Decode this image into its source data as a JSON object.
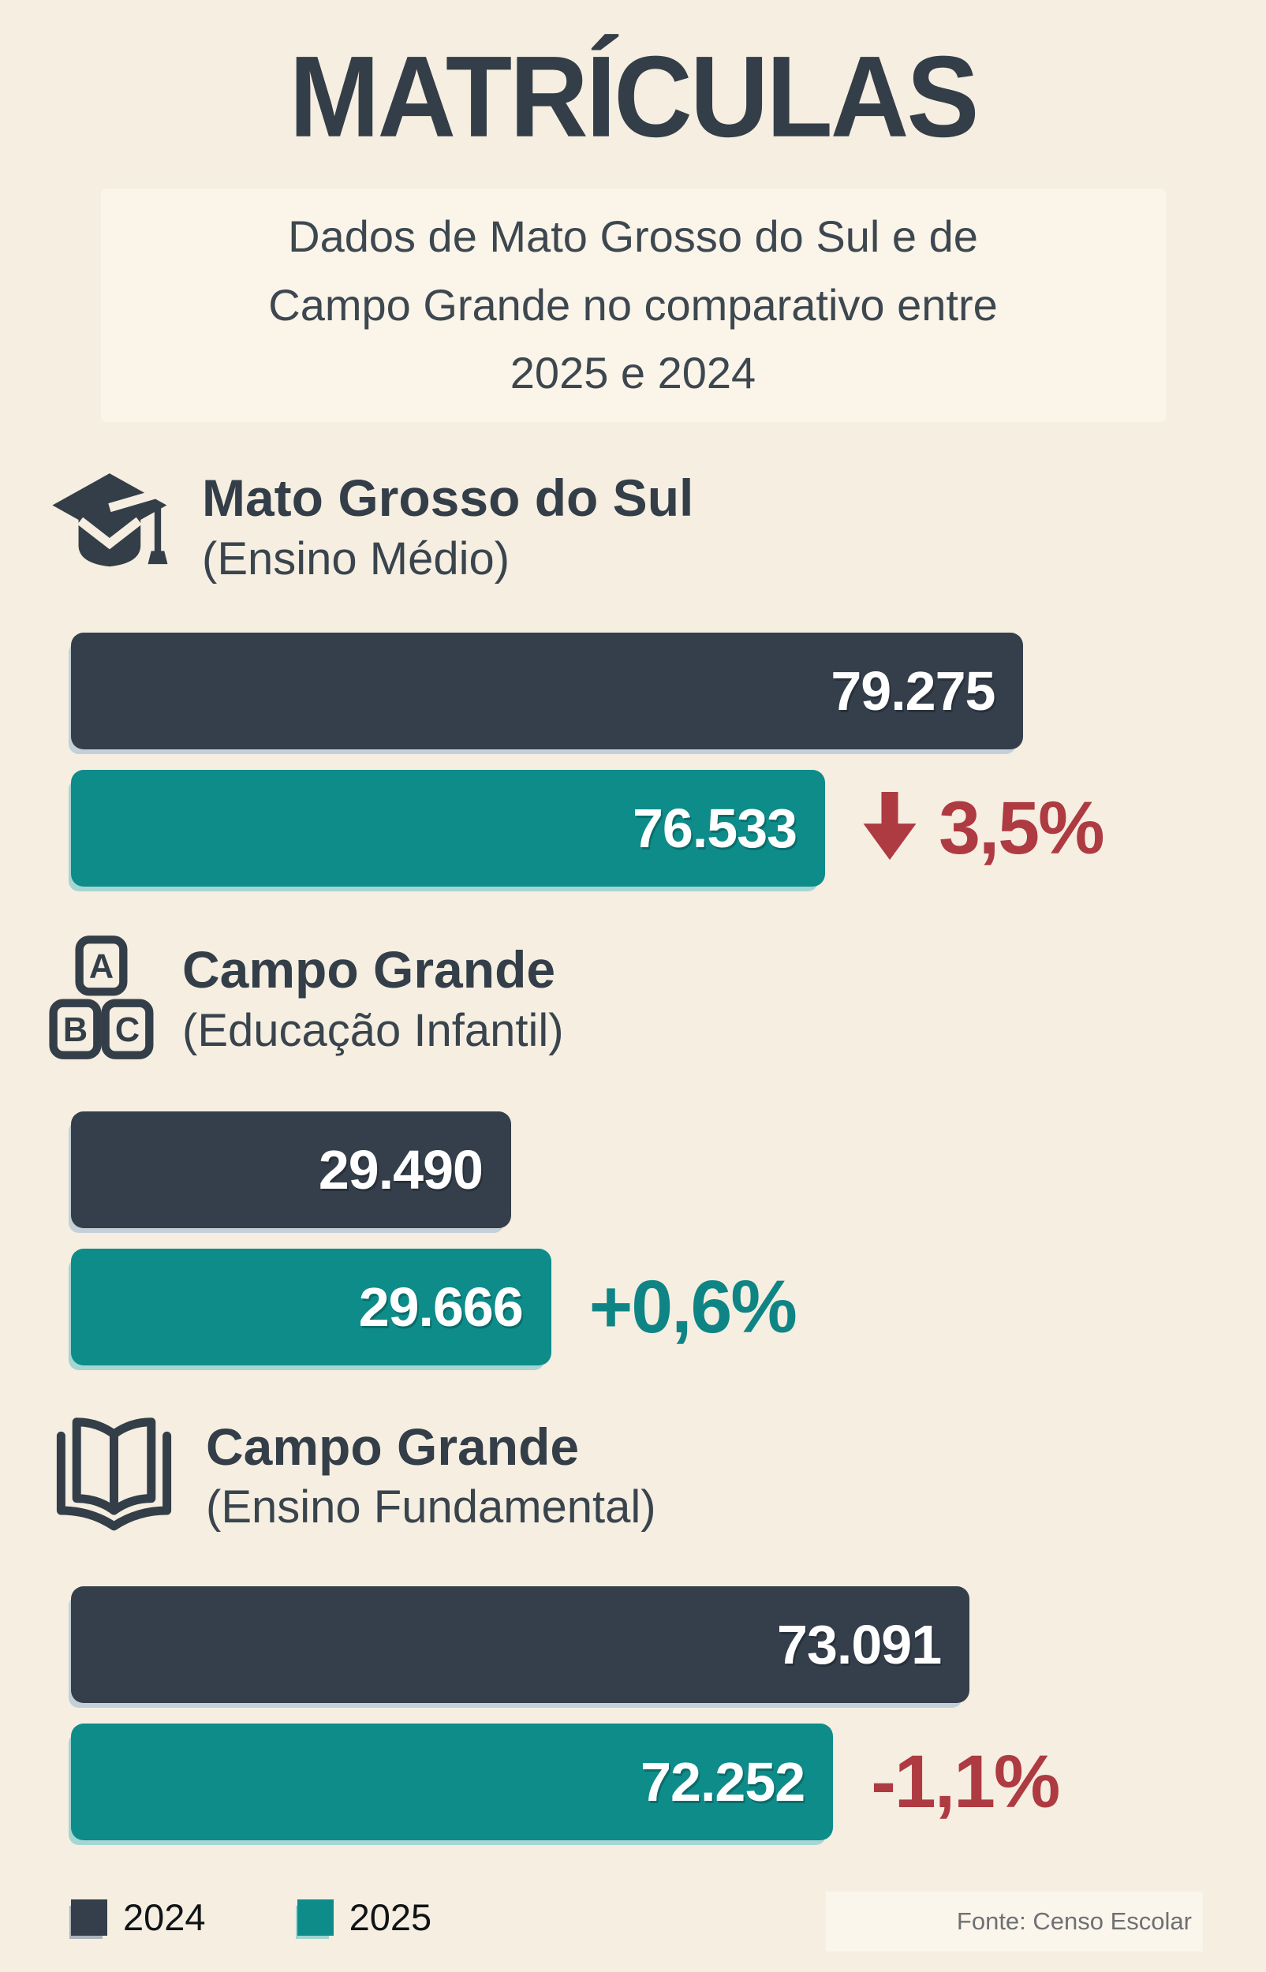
{
  "header": {
    "title": "MATRÍCULAS",
    "subtitle": "Dados de Mato Grosso do Sul e de\nCampo Grande no comparativo entre\n2025 e 2024"
  },
  "chart_data": {
    "type": "bar",
    "orientation": "horizontal",
    "title": "MATRÍCULAS",
    "legend_position": "bottom",
    "series_labels": [
      "2024",
      "2025"
    ],
    "colors": {
      "year_2024": "#343F4B",
      "year_2025": "#0D8C8A",
      "decline": "#AE3A42",
      "growth": "#0E8584",
      "background": "#F5EEE1"
    },
    "sections": [
      {
        "icon": "graduation-cap",
        "name": "Mato Grosso do Sul",
        "level": "(Ensino Médio)",
        "value_2024": 79275,
        "value_2025": 76533,
        "value_2024_label": "79.275",
        "value_2025_label": "76.533",
        "change_label": "3,5%",
        "change_direction": "down",
        "bar_2024_width_pct": 83.1,
        "bar_2025_width_pct": 65.8
      },
      {
        "icon": "abc-blocks",
        "name": "Campo Grande",
        "level": "(Educação Infantil)",
        "value_2024": 29490,
        "value_2025": 29666,
        "value_2024_label": "29.490",
        "value_2025_label": "29.666",
        "change_label": "+0,6%",
        "change_direction": "up",
        "bar_2024_width_pct": 38.4,
        "bar_2025_width_pct": 41.9
      },
      {
        "icon": "open-book",
        "name": "Campo Grande",
        "level": "(Ensino Fundamental)",
        "value_2024": 73091,
        "value_2025": 72252,
        "value_2024_label": "73.091",
        "value_2025_label": "72.252",
        "change_label": "-1,1%",
        "change_direction": "down",
        "bar_2024_width_pct": 78.4,
        "bar_2025_width_pct": 66.5
      }
    ]
  },
  "legend": {
    "items": [
      {
        "label": "2024",
        "color": "#343F4B"
      },
      {
        "label": "2025",
        "color": "#0D8C8A"
      }
    ]
  },
  "footer": {
    "source": "Fonte: Censo Escolar"
  }
}
